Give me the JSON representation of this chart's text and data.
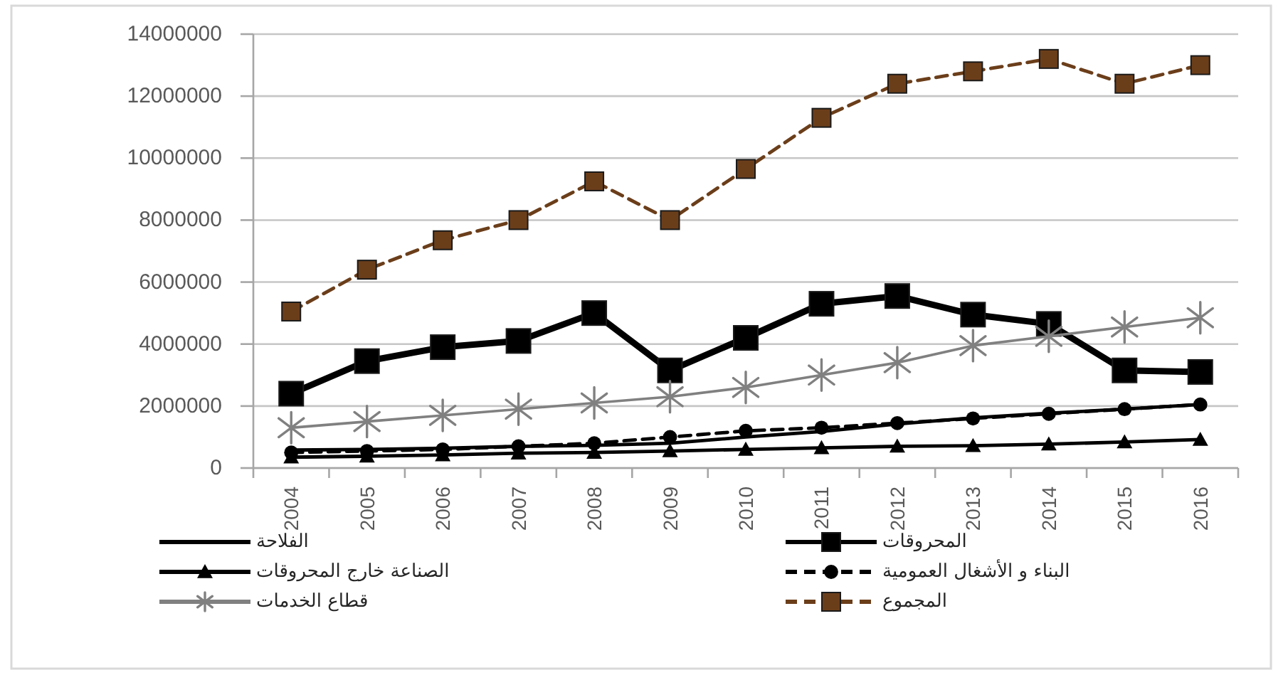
{
  "chart_data": {
    "type": "line",
    "categories": [
      "2004",
      "2005",
      "2006",
      "2007",
      "2008",
      "2009",
      "2010",
      "2011",
      "2012",
      "2013",
      "2014",
      "2015",
      "2016"
    ],
    "ylim": [
      0,
      14000000
    ],
    "yticks": [
      0,
      2000000,
      4000000,
      6000000,
      8000000,
      10000000,
      12000000,
      14000000
    ],
    "grid": "y",
    "legend": "bottom",
    "series": [
      {
        "name": "الفلاحة",
        "color": "#000000",
        "marker": "none",
        "line_style": "solid",
        "values": [
          580000,
          600000,
          640000,
          700000,
          730000,
          800000,
          1000000,
          1180000,
          1420000,
          1620000,
          1770000,
          1900000,
          2050000
        ]
      },
      {
        "name": "المحروقات",
        "color": "#000000",
        "marker": "square",
        "line_style": "solid",
        "values": [
          2400000,
          3450000,
          3900000,
          4100000,
          5000000,
          3150000,
          4200000,
          5300000,
          5550000,
          4950000,
          4650000,
          3150000,
          3100000
        ]
      },
      {
        "name": "الصناعة خارج المحروقات",
        "color": "#000000",
        "marker": "triangle",
        "line_style": "solid",
        "values": [
          350000,
          380000,
          420000,
          480000,
          500000,
          550000,
          600000,
          650000,
          700000,
          720000,
          770000,
          840000,
          920000
        ]
      },
      {
        "name": "البناء و الأشغال العمومية",
        "color": "#000000",
        "marker": "circle",
        "line_style": "dashed",
        "values": [
          500000,
          550000,
          600000,
          700000,
          800000,
          1000000,
          1200000,
          1300000,
          1450000,
          1600000,
          1750000,
          1900000,
          2050000
        ]
      },
      {
        "name": "قطاع الخدمات",
        "color": "#808080",
        "marker": "cross",
        "line_style": "solid",
        "values": [
          1300000,
          1500000,
          1700000,
          1900000,
          2100000,
          2300000,
          2600000,
          3000000,
          3400000,
          3950000,
          4250000,
          4550000,
          4850000
        ]
      },
      {
        "name": "المجموع",
        "color": "#6b3e1a",
        "marker": "square",
        "line_style": "dashed",
        "values": [
          5050000,
          6400000,
          7350000,
          8000000,
          9250000,
          8000000,
          9650000,
          11300000,
          12400000,
          12800000,
          13200000,
          12400000,
          13000000
        ]
      }
    ]
  }
}
